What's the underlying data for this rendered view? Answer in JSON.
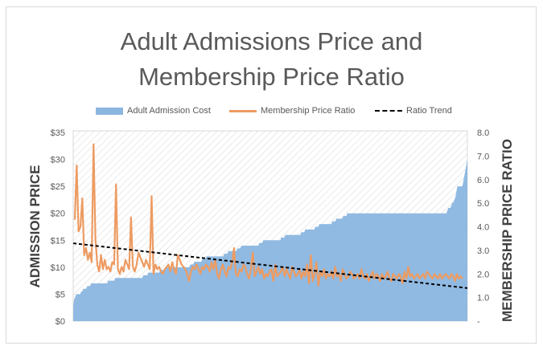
{
  "chart_data": {
    "type": "line",
    "title": "Adult Admissions Price and Membership Price Ratio",
    "title_lines": [
      "Adult Admissions Price and",
      "Membership Price Ratio"
    ],
    "legend": [
      "Adult Admission Cost",
      "Membership Price Ratio",
      "Ratio Trend"
    ],
    "legend_position": "top",
    "ylabel_left": "ADMISSION PRICE",
    "ylabel_right": "MEMBERSHIP PRICE RATIO",
    "y_left_ticks": [
      "$0",
      "$5",
      "$10",
      "$15",
      "$20",
      "$25",
      "$30",
      "$35"
    ],
    "y_right_ticks": [
      "-",
      "1.0",
      "2.0",
      "3.0",
      "4.0",
      "5.0",
      "6.0",
      "7.0",
      "8.0"
    ],
    "ylim_left": [
      0,
      35
    ],
    "ylim_right": [
      0,
      8
    ],
    "grid": false,
    "series": [
      {
        "name": "Adult Admission Cost",
        "type": "area",
        "axis": "left",
        "color": "#8ab6e0",
        "values": [
          3,
          4,
          4.5,
          5,
          5,
          5,
          5,
          5,
          5.5,
          5.5,
          6,
          6,
          6,
          6,
          6.5,
          6.5,
          6.5,
          6.5,
          7,
          7,
          7,
          7,
          7,
          7,
          7,
          7,
          7,
          7,
          7,
          7,
          7,
          7,
          7,
          7,
          7,
          7.5,
          7.5,
          7.5,
          7.5,
          7.5,
          7.5,
          7.5,
          8,
          8,
          8,
          8,
          8,
          8,
          8,
          8,
          8,
          8,
          8,
          8,
          8,
          8,
          8,
          8,
          8,
          8,
          8,
          8,
          8,
          8,
          8,
          8,
          8,
          8,
          8,
          8,
          8.5,
          8.5,
          8.5,
          8.5,
          8.5,
          9,
          9,
          9,
          9,
          9,
          9,
          9,
          9,
          9,
          9,
          9,
          9,
          9.5,
          9.5,
          9.5,
          9.5,
          9.5,
          10,
          10,
          10,
          10,
          10,
          10,
          10,
          10,
          10,
          10,
          10,
          10,
          10,
          10,
          10,
          10,
          10,
          10,
          10,
          10,
          10,
          10,
          10,
          10,
          10,
          10.5,
          10.5,
          10.5,
          10.5,
          11,
          11,
          11,
          11,
          11,
          11,
          11,
          11,
          11.5,
          11.5,
          11.5,
          11.5,
          12,
          12,
          12,
          12,
          12,
          12,
          12,
          12,
          12,
          12,
          12,
          12,
          12,
          12,
          12,
          12,
          12,
          12,
          12.5,
          12.5,
          12.5,
          12.5,
          13,
          13,
          13,
          13,
          13,
          13,
          13,
          13,
          13,
          13.5,
          13.5,
          13.5,
          13.5,
          14,
          14,
          14,
          14,
          14,
          14,
          14,
          14,
          14,
          14,
          14,
          14,
          14,
          14,
          14,
          14,
          14,
          14,
          14.5,
          14.5,
          14.5,
          14.5,
          15,
          15,
          15,
          15,
          15,
          15,
          15,
          15,
          15,
          15,
          15,
          15,
          15,
          15,
          15,
          15,
          15,
          15,
          15.5,
          15.5,
          15.5,
          15.5,
          16,
          16,
          16,
          16,
          16,
          16,
          16,
          16,
          16,
          16,
          16,
          16,
          16,
          16,
          16,
          16,
          16.5,
          16.5,
          16.5,
          16.5,
          17,
          17,
          17,
          17,
          17,
          17,
          17,
          17,
          17,
          17,
          17.5,
          17.5,
          17.5,
          17.5,
          18,
          18,
          18,
          18,
          18,
          18,
          18,
          18,
          18,
          18,
          18,
          18,
          18,
          18.5,
          18.5,
          18.5,
          18.5,
          19,
          19,
          19,
          19,
          19,
          19,
          19,
          19.5,
          19.5,
          19.5,
          19.5,
          20,
          20,
          20,
          20,
          20,
          20,
          20,
          20,
          20,
          20,
          20,
          20,
          20,
          20,
          20,
          20,
          20,
          20,
          20,
          20,
          20,
          20,
          20,
          20,
          20,
          20,
          20,
          20,
          20,
          20,
          20,
          20,
          20,
          20,
          20,
          20,
          20,
          20,
          20,
          20,
          20,
          20,
          20,
          20,
          20,
          20,
          20,
          20,
          20,
          20,
          20,
          20,
          20,
          20,
          20,
          20,
          20,
          20,
          20,
          20,
          20,
          20,
          20,
          20,
          20,
          20,
          20,
          20,
          20,
          20,
          20,
          20,
          20,
          20,
          20,
          20,
          20,
          20,
          20,
          20,
          20,
          20,
          20,
          20,
          20,
          20,
          20,
          20,
          20,
          20,
          20,
          20,
          20,
          20,
          20,
          20,
          20,
          20,
          20,
          20,
          20.5,
          21,
          21,
          21,
          21.5,
          22,
          22,
          22.5,
          23,
          24,
          25,
          25,
          25,
          25,
          25,
          25,
          26,
          27,
          28,
          29,
          30
        ]
      },
      {
        "name": "Membership Price Ratio",
        "type": "line",
        "axis": "right",
        "color": "#ed9b61",
        "values": [
          4.3,
          6.6,
          3.8,
          4.0,
          5.2,
          2.8,
          3.1,
          2.6,
          2.9,
          2.5,
          7.5,
          3.5,
          2.4,
          2.1,
          2.8,
          2.2,
          2.6,
          2.2,
          2.3,
          2.1,
          2.5,
          2.4,
          5.8,
          2.2,
          2.0,
          2.3,
          2.1,
          2.6,
          2.4,
          2.2,
          4.4,
          2.3,
          2.1,
          2.4,
          2.9,
          2.7,
          2.5,
          2.3,
          2.6,
          2.4,
          2.2,
          5.3,
          2.0,
          2.4,
          2.2,
          2.3,
          2.1,
          2.0,
          2.2,
          2.3,
          2.4,
          2.1,
          2.5,
          2.2,
          2.0,
          2.8,
          2.6,
          2.4,
          2.3,
          2.2,
          2.0,
          1.7,
          2.1,
          2.3,
          2.2,
          2.4,
          2.2,
          2.0,
          2.3,
          2.2,
          2.4,
          2.3,
          2.1,
          2.5,
          2.2,
          2.6,
          2.0,
          1.8,
          2.2,
          2.4,
          2.1,
          1.9,
          2.3,
          2.2,
          2.5,
          3.1,
          2.0,
          1.9,
          2.2,
          2.1,
          2.4,
          2.3,
          2.0,
          1.8,
          2.2,
          2.9,
          1.9,
          2.1,
          2.3,
          2.0,
          2.2,
          1.8,
          2.0,
          1.9,
          2.1,
          2.2,
          1.7,
          2.4,
          1.9,
          2.0,
          2.1,
          2.3,
          1.9,
          2.2,
          2.0,
          1.8,
          2.3,
          2.1,
          1.9,
          2.0,
          2.2,
          1.8,
          2.1,
          1.9,
          2.4,
          1.6,
          2.8,
          1.7,
          2.0,
          2.5,
          1.5,
          2.1,
          1.9,
          2.2,
          1.8,
          2.0,
          1.9,
          2.1,
          1.8,
          2.3,
          1.9,
          2.0,
          1.7,
          2.2,
          2.0,
          1.8,
          1.9,
          2.1,
          2.0,
          1.8,
          1.9,
          2.0,
          1.8,
          2.2,
          1.9,
          1.8,
          2.0,
          1.7,
          1.9,
          2.1,
          1.8,
          2.0,
          1.9,
          1.7,
          2.0,
          1.8,
          1.9,
          2.1,
          1.8,
          1.7,
          2.0,
          1.9,
          1.8,
          2.0,
          1.9,
          1.6,
          2.1,
          1.8,
          2.3,
          1.9,
          2.0,
          1.8,
          1.9,
          2.0,
          1.8,
          1.9,
          2.0,
          1.8,
          2.1,
          2.0,
          1.9,
          1.8,
          2.0,
          1.9,
          1.8,
          2.0,
          1.8,
          1.9,
          2.0,
          1.9,
          1.8,
          2.0,
          1.9,
          1.7,
          2.0,
          1.8,
          1.9,
          1.8
        ]
      },
      {
        "name": "Ratio Trend",
        "type": "line",
        "axis": "right",
        "color": "#000000",
        "dash": true,
        "start": 3.3,
        "end": 1.4
      }
    ]
  }
}
